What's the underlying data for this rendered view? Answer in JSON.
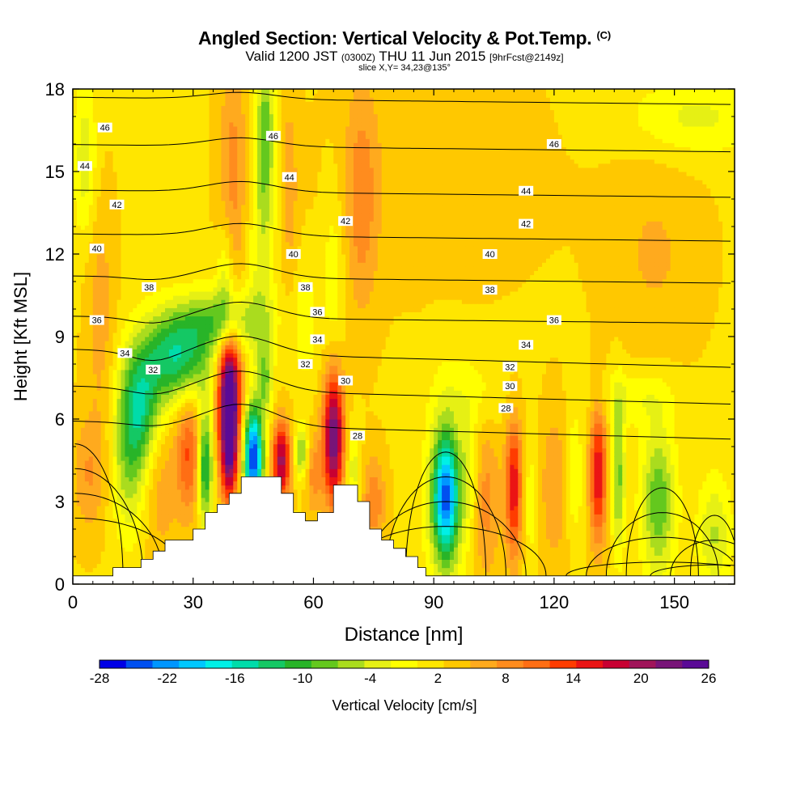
{
  "title": "Angled Section: Vertical Velocity & Pot.Temp.",
  "title_mark": "(C)",
  "subtitle": {
    "part1": "Valid 1200 JST",
    "part2": "(0300Z)",
    "part3": "THU 11 Jun 2015",
    "part4": "[9hrFcst@2149z]"
  },
  "slice_text": "slice X,Y= 34,23@135°",
  "chart_data": {
    "type": "heatmap",
    "xlabel": "Distance [nm]",
    "ylabel": "Height [Kft MSL]",
    "xlim": [
      0,
      165
    ],
    "ylim": [
      0,
      18
    ],
    "xticks": [
      0,
      30,
      60,
      90,
      120,
      150
    ],
    "yticks": [
      0,
      3,
      6,
      9,
      12,
      15,
      18
    ],
    "terrain": [
      [
        0,
        0.3
      ],
      [
        10,
        0.3
      ],
      [
        10,
        0.6
      ],
      [
        17,
        0.6
      ],
      [
        17,
        0.9
      ],
      [
        20,
        0.9
      ],
      [
        20,
        1.2
      ],
      [
        23,
        1.2
      ],
      [
        23,
        1.6
      ],
      [
        30,
        1.6
      ],
      [
        30,
        2.0
      ],
      [
        33,
        2.0
      ],
      [
        33,
        2.6
      ],
      [
        36,
        2.6
      ],
      [
        36,
        2.9
      ],
      [
        39,
        2.9
      ],
      [
        39,
        3.3
      ],
      [
        42,
        3.3
      ],
      [
        42,
        3.9
      ],
      [
        52,
        3.9
      ],
      [
        52,
        3.3
      ],
      [
        55,
        3.3
      ],
      [
        55,
        2.6
      ],
      [
        58,
        2.6
      ],
      [
        58,
        2.3
      ],
      [
        61,
        2.3
      ],
      [
        61,
        2.6
      ],
      [
        65,
        2.6
      ],
      [
        65,
        3.6
      ],
      [
        71,
        3.6
      ],
      [
        71,
        3.0
      ],
      [
        74,
        3.0
      ],
      [
        74,
        2.0
      ],
      [
        77,
        2.0
      ],
      [
        77,
        1.6
      ],
      [
        80,
        1.6
      ],
      [
        80,
        1.3
      ],
      [
        83,
        1.3
      ],
      [
        83,
        1.0
      ],
      [
        86,
        1.0
      ],
      [
        86,
        0.6
      ],
      [
        88,
        0.6
      ],
      [
        88,
        0.3
      ],
      [
        165,
        0.3
      ]
    ],
    "velocity_features": [
      {
        "x": 39,
        "y": 7.0,
        "sx": 2.0,
        "sy": 1.6,
        "v": 26
      },
      {
        "x": 39,
        "y": 4.6,
        "sx": 1.5,
        "sy": 1.3,
        "v": 16
      },
      {
        "x": 45,
        "y": 4.6,
        "sx": 1.7,
        "sy": 1.3,
        "v": -28
      },
      {
        "x": 48,
        "y": 7.5,
        "sx": 1.3,
        "sy": 1.0,
        "v": -8
      },
      {
        "x": 52,
        "y": 4.5,
        "sx": 1.6,
        "sy": 1.0,
        "v": 18
      },
      {
        "x": 57,
        "y": 4.8,
        "sx": 1.2,
        "sy": 0.7,
        "v": -10
      },
      {
        "x": 60,
        "y": 4.0,
        "sx": 1.6,
        "sy": 1.0,
        "v": 6
      },
      {
        "x": 65,
        "y": 5.4,
        "sx": 1.8,
        "sy": 1.7,
        "v": 22
      },
      {
        "x": 70,
        "y": 4.2,
        "sx": 1.2,
        "sy": 1.0,
        "v": -6
      },
      {
        "x": 75,
        "y": 3.0,
        "sx": 2.0,
        "sy": 1.2,
        "v": 7
      },
      {
        "x": 29,
        "y": 4.8,
        "sx": 2.3,
        "sy": 1.6,
        "v": 10
      },
      {
        "x": 33,
        "y": 4.3,
        "sx": 1.3,
        "sy": 1.5,
        "v": -16
      },
      {
        "x": 22,
        "y": 3.5,
        "sx": 3.0,
        "sy": 2.0,
        "v": 4
      },
      {
        "x": 14,
        "y": 4.5,
        "sx": 3.0,
        "sy": 2.0,
        "v": -8
      },
      {
        "x": 26,
        "y": 8.3,
        "sx": 6.0,
        "sy": 1.2,
        "v": -16
      },
      {
        "x": 17,
        "y": 6.5,
        "sx": 3.5,
        "sy": 1.5,
        "v": -13
      },
      {
        "x": 38,
        "y": 9.6,
        "sx": 7.0,
        "sy": 0.8,
        "v": -10
      },
      {
        "x": 48,
        "y": 16.5,
        "sx": 1.6,
        "sy": 2.2,
        "v": -10
      },
      {
        "x": 47,
        "y": 12.0,
        "sx": 2.4,
        "sy": 3.0,
        "v": -5
      },
      {
        "x": 40,
        "y": 15.0,
        "sx": 2.5,
        "sy": 3.0,
        "v": 6
      },
      {
        "x": 38,
        "y": 11.0,
        "sx": 1.5,
        "sy": 1.5,
        "v": -6
      },
      {
        "x": 54,
        "y": 14.5,
        "sx": 1.5,
        "sy": 2.5,
        "v": 4
      },
      {
        "x": 58,
        "y": 9.5,
        "sx": 2.0,
        "sy": 1.5,
        "v": -4
      },
      {
        "x": 65,
        "y": 11.0,
        "sx": 2.0,
        "sy": 2.5,
        "v": -4
      },
      {
        "x": 72,
        "y": 14.0,
        "sx": 3.0,
        "sy": 3.0,
        "v": 6
      },
      {
        "x": 3,
        "y": 15.5,
        "sx": 2.0,
        "sy": 2.0,
        "v": -6
      },
      {
        "x": 7,
        "y": 9.8,
        "sx": 2.5,
        "sy": 3.0,
        "v": 4
      },
      {
        "x": 4,
        "y": 4.0,
        "sx": 3.0,
        "sy": 1.5,
        "v": 5
      },
      {
        "x": 155,
        "y": 17.0,
        "sx": 12.0,
        "sy": 1.0,
        "v": -5
      },
      {
        "x": 145,
        "y": 12.0,
        "sx": 8.0,
        "sy": 2.5,
        "v": 3
      },
      {
        "x": 90,
        "y": 15.0,
        "sx": 20.0,
        "sy": 3.0,
        "v": 1.5
      },
      {
        "x": 93,
        "y": 3.2,
        "sx": 2.2,
        "sy": 1.5,
        "v": -19
      },
      {
        "x": 93,
        "y": 3.2,
        "sx": 3.5,
        "sy": 2.5,
        "v": -8
      },
      {
        "x": 103,
        "y": 3.0,
        "sx": 2.5,
        "sy": 2.0,
        "v": 6
      },
      {
        "x": 99,
        "y": 4.0,
        "sx": 1.5,
        "sy": 1.5,
        "v": -5
      },
      {
        "x": 110,
        "y": 3.5,
        "sx": 1.5,
        "sy": 1.8,
        "v": 14
      },
      {
        "x": 114,
        "y": 3.0,
        "sx": 1.5,
        "sy": 1.5,
        "v": -4
      },
      {
        "x": 120,
        "y": 3.5,
        "sx": 2.5,
        "sy": 2.0,
        "v": 5
      },
      {
        "x": 125,
        "y": 4.0,
        "sx": 1.5,
        "sy": 1.5,
        "v": -5
      },
      {
        "x": 131,
        "y": 4.0,
        "sx": 1.5,
        "sy": 1.8,
        "v": 14
      },
      {
        "x": 136,
        "y": 4.0,
        "sx": 1.2,
        "sy": 2.0,
        "v": -10
      },
      {
        "x": 146,
        "y": 3.0,
        "sx": 3.0,
        "sy": 2.0,
        "v": -11
      },
      {
        "x": 160,
        "y": 1.8,
        "sx": 3.0,
        "sy": 1.5,
        "v": -7
      },
      {
        "x": 140,
        "y": 6.8,
        "sx": 7.0,
        "sy": 0.7,
        "v": -4
      },
      {
        "x": 100,
        "y": 7.0,
        "sx": 6.0,
        "sy": 1.0,
        "v": -3
      }
    ],
    "contour_levels": [
      28,
      30,
      32,
      34,
      36,
      38,
      40,
      42,
      44,
      46
    ],
    "contour_labels": [
      {
        "text": "46",
        "x": 8,
        "y": 16.6
      },
      {
        "text": "46",
        "x": 50,
        "y": 16.3
      },
      {
        "text": "46",
        "x": 120,
        "y": 16.0
      },
      {
        "text": "44",
        "x": 3,
        "y": 15.2
      },
      {
        "text": "44",
        "x": 54,
        "y": 14.8
      },
      {
        "text": "44",
        "x": 113,
        "y": 14.3
      },
      {
        "text": "42",
        "x": 11,
        "y": 13.8
      },
      {
        "text": "42",
        "x": 68,
        "y": 13.2
      },
      {
        "text": "42",
        "x": 113,
        "y": 13.1
      },
      {
        "text": "40",
        "x": 6,
        "y": 12.2
      },
      {
        "text": "40",
        "x": 55,
        "y": 12.0
      },
      {
        "text": "40",
        "x": 104,
        "y": 12.0
      },
      {
        "text": "38",
        "x": 19,
        "y": 10.8
      },
      {
        "text": "38",
        "x": 58,
        "y": 10.8
      },
      {
        "text": "38",
        "x": 104,
        "y": 10.7
      },
      {
        "text": "36",
        "x": 6,
        "y": 9.6
      },
      {
        "text": "36",
        "x": 61,
        "y": 9.9
      },
      {
        "text": "36",
        "x": 120,
        "y": 9.6
      },
      {
        "text": "34",
        "x": 13,
        "y": 8.4
      },
      {
        "text": "34",
        "x": 61,
        "y": 8.9
      },
      {
        "text": "34",
        "x": 113,
        "y": 8.7
      },
      {
        "text": "32",
        "x": 20,
        "y": 7.8
      },
      {
        "text": "32",
        "x": 58,
        "y": 8.0
      },
      {
        "text": "32",
        "x": 109,
        "y": 7.9
      },
      {
        "text": "30",
        "x": 68,
        "y": 7.4
      },
      {
        "text": "30",
        "x": 109,
        "y": 7.2
      },
      {
        "text": "28",
        "x": 71,
        "y": 5.4
      },
      {
        "text": "28",
        "x": 108,
        "y": 6.4
      }
    ]
  },
  "colorbar": {
    "label": "Vertical Velocity [cm/s]",
    "min": -28,
    "max": 26,
    "ticks": [
      -28,
      -22,
      -16,
      -10,
      -4,
      2,
      8,
      14,
      20,
      26
    ],
    "colors": [
      "#0000e6",
      "#0050f0",
      "#0096ff",
      "#00c8ff",
      "#00f0e6",
      "#00dcaa",
      "#14c864",
      "#28b428",
      "#64c81e",
      "#aadc1e",
      "#e6f014",
      "#ffff00",
      "#ffe600",
      "#ffc800",
      "#ffaa1e",
      "#ff8c1e",
      "#ff6e14",
      "#ff3c00",
      "#eb1414",
      "#c80032",
      "#a0145a",
      "#781478",
      "#5a0a96"
    ]
  }
}
